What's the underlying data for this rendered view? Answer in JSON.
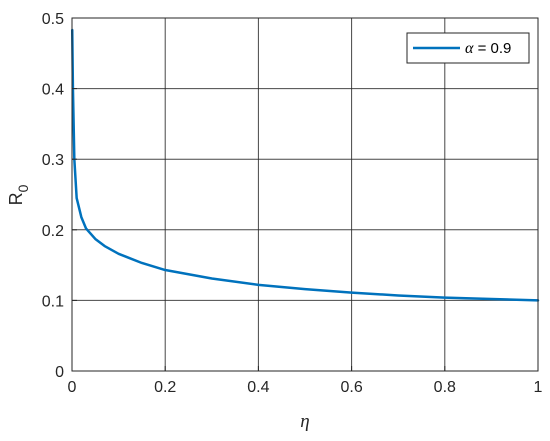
{
  "chart_data": {
    "type": "line",
    "xlabel": "η",
    "ylabel": "R",
    "ylabel_subscript": "0",
    "xlim": [
      0,
      1
    ],
    "ylim": [
      0,
      0.5
    ],
    "xticks": [
      "0",
      "0.2",
      "0.4",
      "0.6",
      "0.8",
      "1"
    ],
    "yticks": [
      "0",
      "0.1",
      "0.2",
      "0.3",
      "0.4",
      "0.5"
    ],
    "grid": true,
    "legend_position": "top-right",
    "series": [
      {
        "name": "α = 0.9",
        "legend_symbol": "α",
        "legend_value": " = 0.9",
        "color": "#0072BD",
        "x": [
          0.0005,
          0.002,
          0.005,
          0.01,
          0.02,
          0.03,
          0.05,
          0.07,
          0.1,
          0.15,
          0.2,
          0.3,
          0.4,
          0.5,
          0.6,
          0.7,
          0.8,
          0.9,
          1.0
        ],
        "y": [
          0.483,
          0.4,
          0.3,
          0.245,
          0.218,
          0.202,
          0.187,
          0.177,
          0.166,
          0.153,
          0.143,
          0.131,
          0.122,
          0.116,
          0.111,
          0.107,
          0.104,
          0.102,
          0.1
        ]
      }
    ]
  }
}
